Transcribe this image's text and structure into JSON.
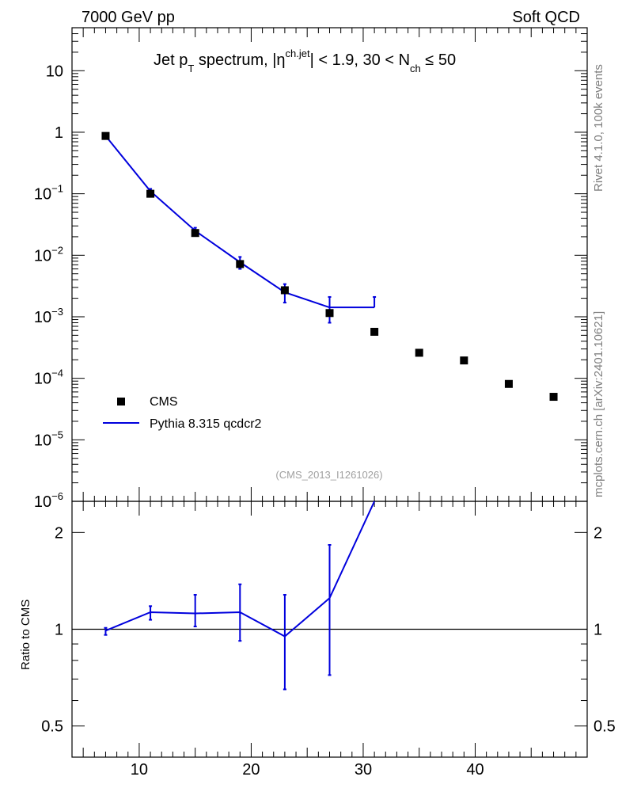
{
  "header": {
    "left": "7000 GeV pp",
    "right": "Soft QCD"
  },
  "side_text": {
    "rivet": "Rivet 4.1.0,  100k events",
    "mcplots": "mcplots.cern.ch [arXiv:2401.10621]"
  },
  "watermark": "(CMS_2013_I1261026)",
  "title": {
    "part1": "Jet p",
    "sub1": "T",
    "part2": " spectrum, |η",
    "sup1": "ch.jet",
    "part3": "| < 1.9, 30 < N",
    "sub2": "ch",
    "part4": " ≤ 50"
  },
  "legend": [
    {
      "label": "CMS",
      "marker": "square",
      "color": "#000000"
    },
    {
      "label": "Pythia 8.315 qcdcr2",
      "marker": "line",
      "color": "#0000dd"
    }
  ],
  "chart_data": [
    {
      "type": "scatter",
      "panel": "main",
      "yscale": "log",
      "xlim": [
        4,
        50
      ],
      "ylim": [
        1e-06,
        50
      ],
      "y_ticks": [
        {
          "v": 10,
          "base": "10",
          "exp": ""
        },
        {
          "v": 1,
          "base": "1",
          "exp": ""
        },
        {
          "v": 0.1,
          "base": "10",
          "exp": "−1"
        },
        {
          "v": 0.01,
          "base": "10",
          "exp": "−2"
        },
        {
          "v": 0.001,
          "base": "10",
          "exp": "−3"
        },
        {
          "v": 0.0001,
          "base": "10",
          "exp": "−4"
        },
        {
          "v": 1e-05,
          "base": "10",
          "exp": "−5"
        },
        {
          "v": 1e-06,
          "base": "10",
          "exp": "−6"
        }
      ],
      "series": [
        {
          "name": "CMS",
          "color": "#000000",
          "x": [
            7,
            11,
            15,
            19,
            23,
            27,
            31,
            35,
            39,
            43,
            47
          ],
          "y": [
            0.87,
            0.1,
            0.023,
            0.0072,
            0.0027,
            0.00115,
            0.00057,
            0.00026,
            0.000195,
            8.1e-05,
            5e-05
          ]
        },
        {
          "name": "Pythia 8.315 qcdcr2",
          "color": "#0000dd",
          "x": [
            7,
            11,
            15,
            19,
            23,
            27,
            31
          ],
          "y": [
            0.87,
            0.11,
            0.025,
            0.0077,
            0.0025,
            0.00142,
            0.00142
          ],
          "y_err_lo": [
            0.82,
            0.096,
            0.021,
            0.006,
            0.0017,
            0.0008,
            null
          ],
          "y_err_hi": [
            0.93,
            0.12,
            0.028,
            0.0094,
            0.0034,
            0.0021,
            0.0021
          ],
          "last_bin": [
            27,
            31
          ]
        }
      ]
    },
    {
      "type": "line",
      "panel": "ratio",
      "ylabel": "Ratio to CMS",
      "yscale": "log",
      "xlim": [
        4,
        50
      ],
      "ylim": [
        0.4,
        2.5
      ],
      "y_ticks": [
        {
          "v": 0.5,
          "label": "0.5"
        },
        {
          "v": 1,
          "label": "1"
        },
        {
          "v": 2,
          "label": "2"
        }
      ],
      "x_ticks": [
        {
          "v": 10,
          "label": "10"
        },
        {
          "v": 20,
          "label": "20"
        },
        {
          "v": 30,
          "label": "30"
        },
        {
          "v": 40,
          "label": "40"
        }
      ],
      "reference": 1,
      "series": [
        {
          "name": "Pythia 8.315 qcdcr2",
          "color": "#0000dd",
          "x": [
            7,
            11,
            15,
            19,
            23,
            27,
            31
          ],
          "y": [
            0.99,
            1.13,
            1.12,
            1.13,
            0.95,
            1.25,
            2.5
          ],
          "y_err_lo": [
            0.96,
            1.07,
            1.02,
            0.92,
            0.65,
            0.72,
            null
          ],
          "y_err_hi": [
            1.01,
            1.18,
            1.28,
            1.38,
            1.28,
            1.83,
            null
          ]
        }
      ]
    }
  ]
}
